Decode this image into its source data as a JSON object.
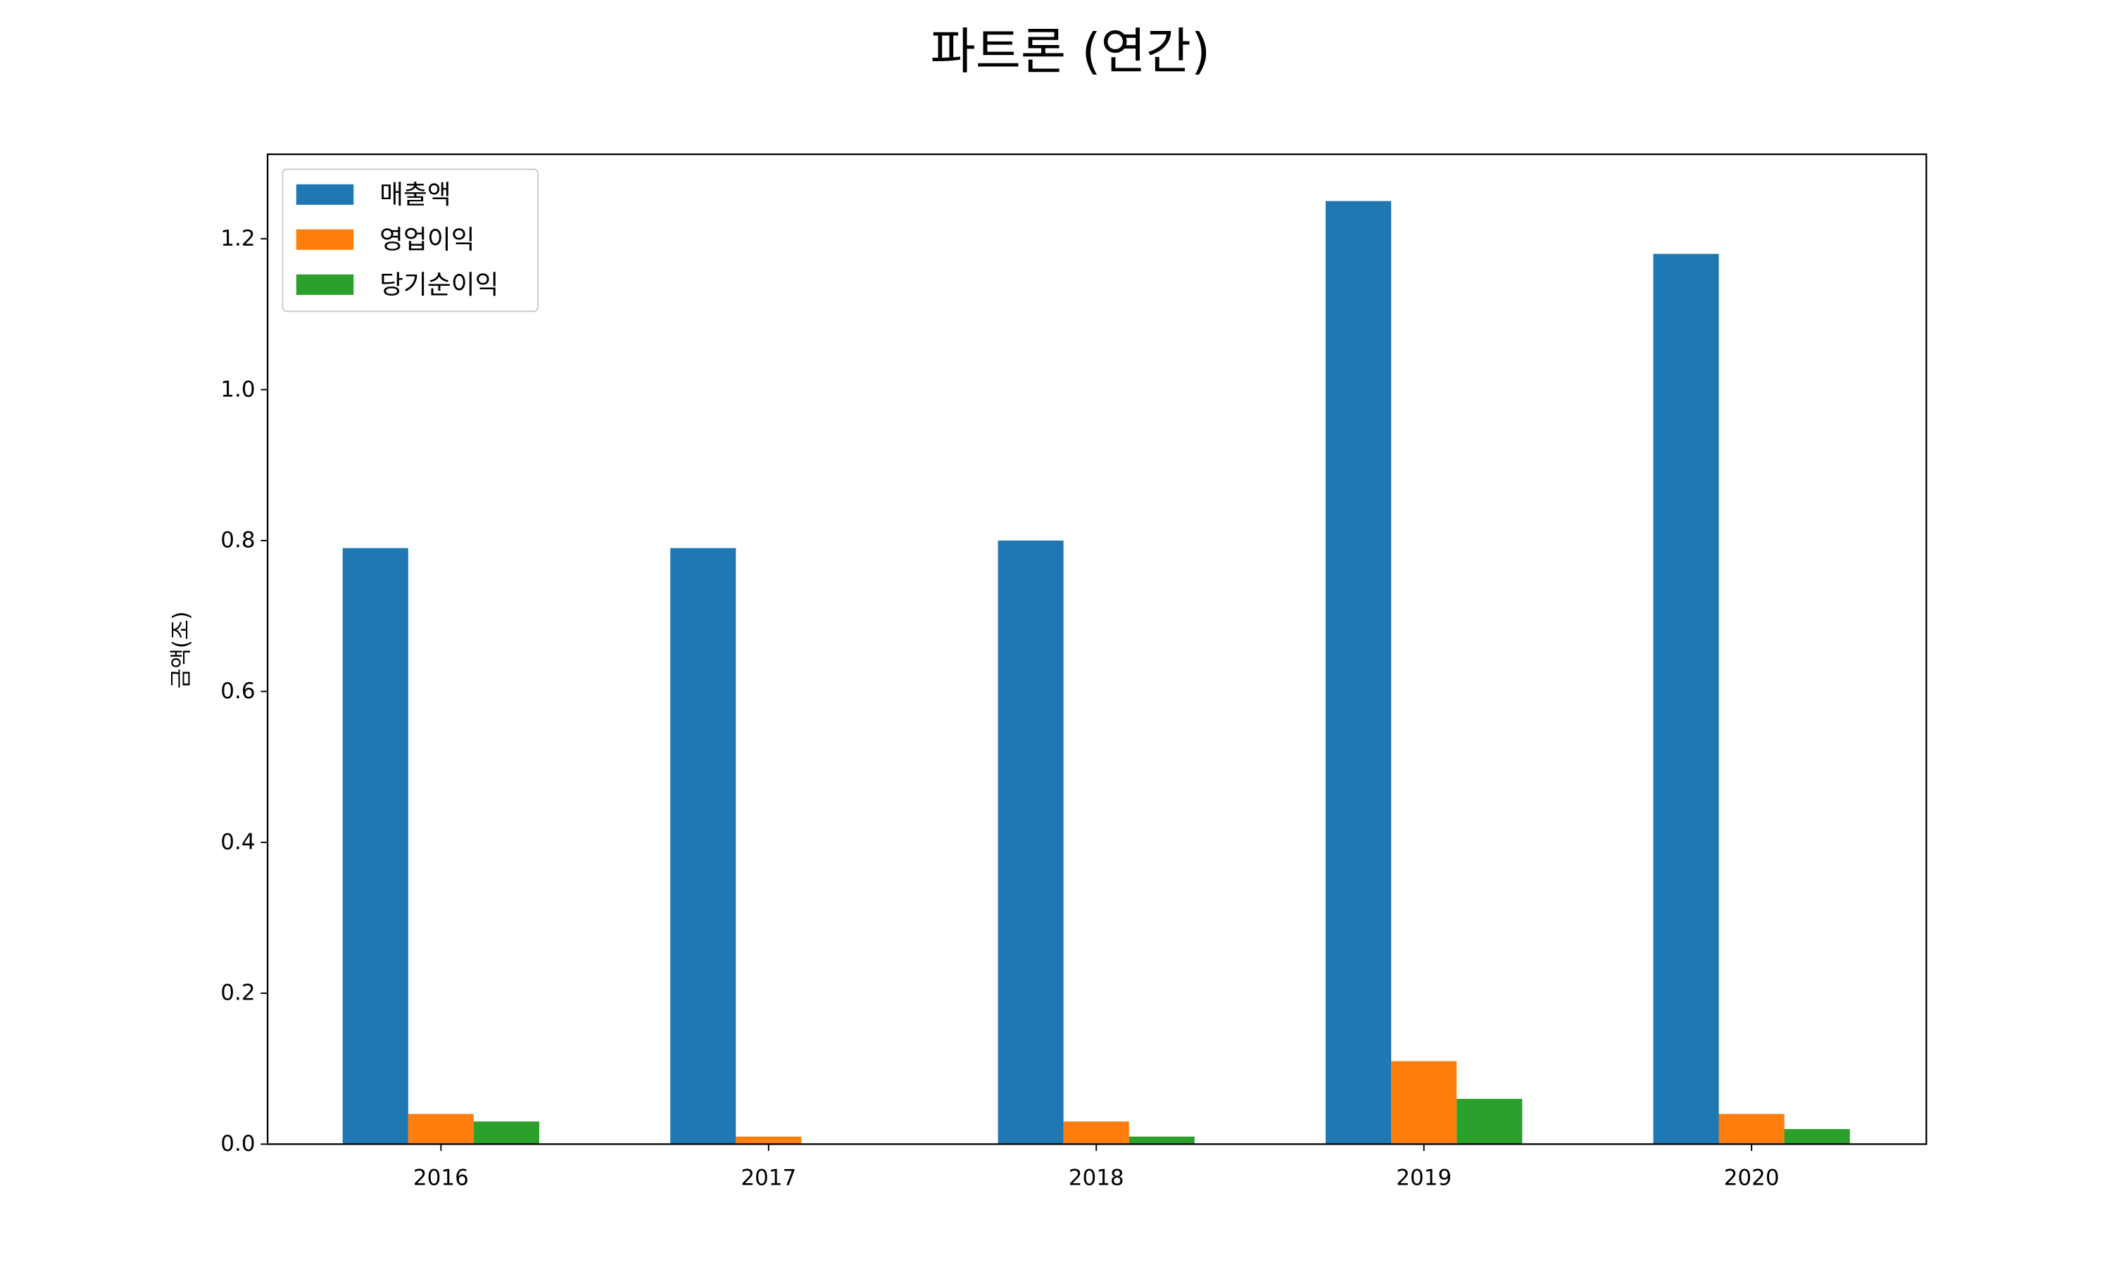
{
  "chart_data": {
    "type": "bar",
    "title": "파트론 (연간)",
    "ylabel": "금액(조)",
    "categories": [
      "2016",
      "2017",
      "2018",
      "2019",
      "2020"
    ],
    "series": [
      {
        "name": "매출액",
        "color": "#1f77b4",
        "values": [
          0.79,
          0.79,
          0.8,
          1.25,
          1.18
        ]
      },
      {
        "name": "영업이익",
        "color": "#ff7f0e",
        "values": [
          0.04,
          0.01,
          0.03,
          0.11,
          0.04
        ]
      },
      {
        "name": "당기순이익",
        "color": "#2ca02c",
        "values": [
          0.03,
          0.0,
          0.01,
          0.06,
          0.02
        ]
      }
    ],
    "ylim": [
      0,
      1.312
    ],
    "yticks": [
      {
        "value": 0,
        "label": "0.0"
      },
      0.2,
      0.4,
      0.6,
      0.8,
      {
        "value": 1,
        "label": "1.0"
      },
      1.2
    ],
    "legend": "upper left"
  }
}
